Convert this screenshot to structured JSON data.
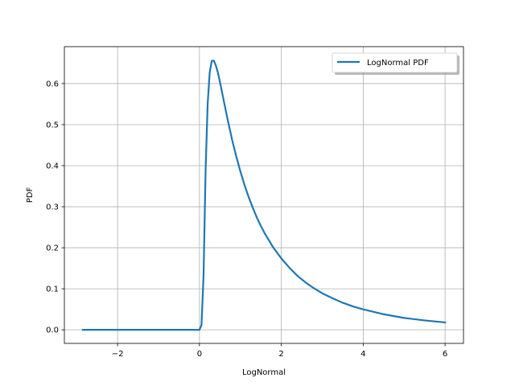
{
  "chart_data": {
    "type": "line",
    "xlabel": "LogNormal",
    "ylabel": "PDF",
    "xlim": [
      -3.3,
      6.45
    ],
    "ylim": [
      -0.033,
      0.69
    ],
    "xticks": [
      -2,
      0,
      2,
      4,
      6
    ],
    "xtick_labels": [
      "−2",
      "0",
      "2",
      "4",
      "6"
    ],
    "yticks": [
      0.0,
      0.1,
      0.2,
      0.3,
      0.4,
      0.5,
      0.6
    ],
    "ytick_labels": [
      "0.0",
      "0.1",
      "0.2",
      "0.3",
      "0.4",
      "0.5",
      "0.6"
    ],
    "grid": true,
    "legend_position": "top-right",
    "series": [
      {
        "name": "LogNormal PDF",
        "color": "#1f77b4",
        "x": [
          -2.85,
          -2.0,
          -1.0,
          -0.5,
          0.0,
          0.05,
          0.1,
          0.15,
          0.2,
          0.25,
          0.3,
          0.35,
          0.4,
          0.45,
          0.5,
          0.6,
          0.7,
          0.8,
          0.9,
          1.0,
          1.1,
          1.2,
          1.3,
          1.4,
          1.5,
          1.6,
          1.8,
          2.0,
          2.2,
          2.4,
          2.6,
          2.8,
          3.0,
          3.25,
          3.5,
          3.75,
          4.0,
          4.5,
          5.0,
          5.5,
          6.0
        ],
        "y": [
          0.0,
          0.0,
          0.0,
          0.0,
          0.0,
          0.012,
          0.133,
          0.39,
          0.55,
          0.627,
          0.655,
          0.656,
          0.644,
          0.627,
          0.604,
          0.555,
          0.507,
          0.462,
          0.422,
          0.386,
          0.353,
          0.324,
          0.298,
          0.274,
          0.253,
          0.234,
          0.201,
          0.174,
          0.151,
          0.131,
          0.115,
          0.101,
          0.089,
          0.077,
          0.066,
          0.057,
          0.05,
          0.038,
          0.029,
          0.023,
          0.018
        ]
      }
    ]
  }
}
